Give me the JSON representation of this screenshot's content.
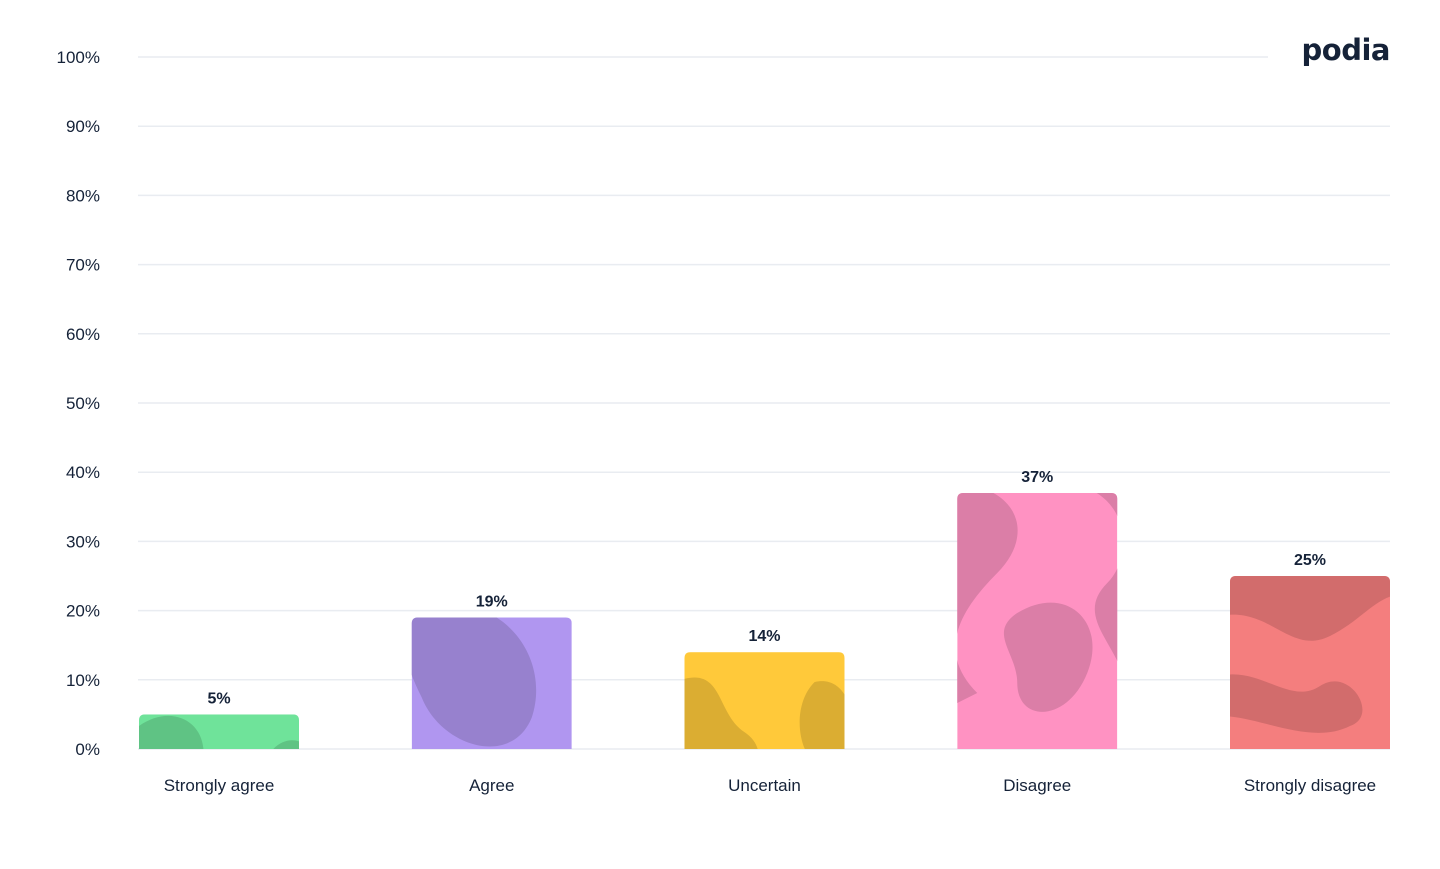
{
  "brand": {
    "logo_text": "podia"
  },
  "colors": {
    "grid": "#e9ecf1",
    "text": "#152238",
    "strongly_agree": "#6fe39a",
    "agree": "#b096f0",
    "uncertain": "#ffc93a",
    "disagree": "#ff92c2",
    "strongly_disagree": "#f47e7e"
  },
  "chart_data": {
    "type": "bar",
    "title": "",
    "xlabel": "",
    "ylabel": "",
    "ylim": [
      0,
      100
    ],
    "y_ticks": [
      "0%",
      "10%",
      "20%",
      "30%",
      "40%",
      "50%",
      "60%",
      "70%",
      "80%",
      "90%",
      "100%"
    ],
    "categories": [
      "Strongly agree",
      "Agree",
      "Uncertain",
      "Disagree",
      "Strongly disagree"
    ],
    "values": [
      5,
      19,
      14,
      37,
      25
    ],
    "data_labels": [
      "5%",
      "19%",
      "14%",
      "37%",
      "25%"
    ],
    "bar_colors": [
      "#6fe39a",
      "#b096f0",
      "#ffc93a",
      "#ff92c2",
      "#f47e7e"
    ],
    "grid": true,
    "legend": "none"
  }
}
